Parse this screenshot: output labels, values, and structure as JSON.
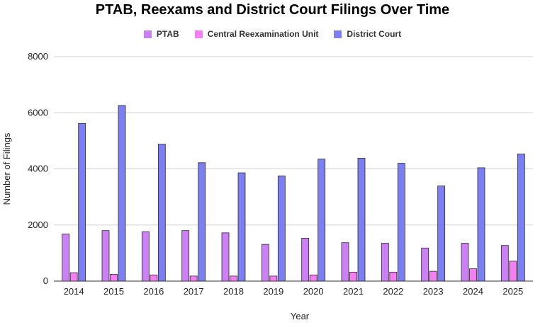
{
  "chart_data": {
    "type": "bar",
    "title": "PTAB, Reexams and District Court Filings Over Time",
    "xlabel": "Year",
    "ylabel": "Number of Filings",
    "ylim": [
      0,
      8000
    ],
    "yticks": [
      "0",
      "2000",
      "4000",
      "6000",
      "8000"
    ],
    "grid": true,
    "legend_position": "top",
    "categories": [
      "2014",
      "2015",
      "2016",
      "2017",
      "2018",
      "2019",
      "2020",
      "2021",
      "2022",
      "2023",
      "2024",
      "2025"
    ],
    "series": [
      {
        "name": "PTAB",
        "color": "#cc80f5",
        "values": [
          1680,
          1800,
          1760,
          1800,
          1720,
          1310,
          1530,
          1370,
          1350,
          1180,
          1350,
          1270
        ]
      },
      {
        "name": "Central Reexamination Unit",
        "color": "#f57ef3",
        "values": [
          300,
          240,
          220,
          180,
          180,
          180,
          220,
          320,
          320,
          350,
          440,
          710
        ]
      },
      {
        "name": "District Court",
        "color": "#7b7ff2",
        "values": [
          5620,
          6260,
          4880,
          4220,
          3860,
          3750,
          4350,
          4380,
          4200,
          3390,
          4040,
          4530
        ]
      }
    ]
  }
}
